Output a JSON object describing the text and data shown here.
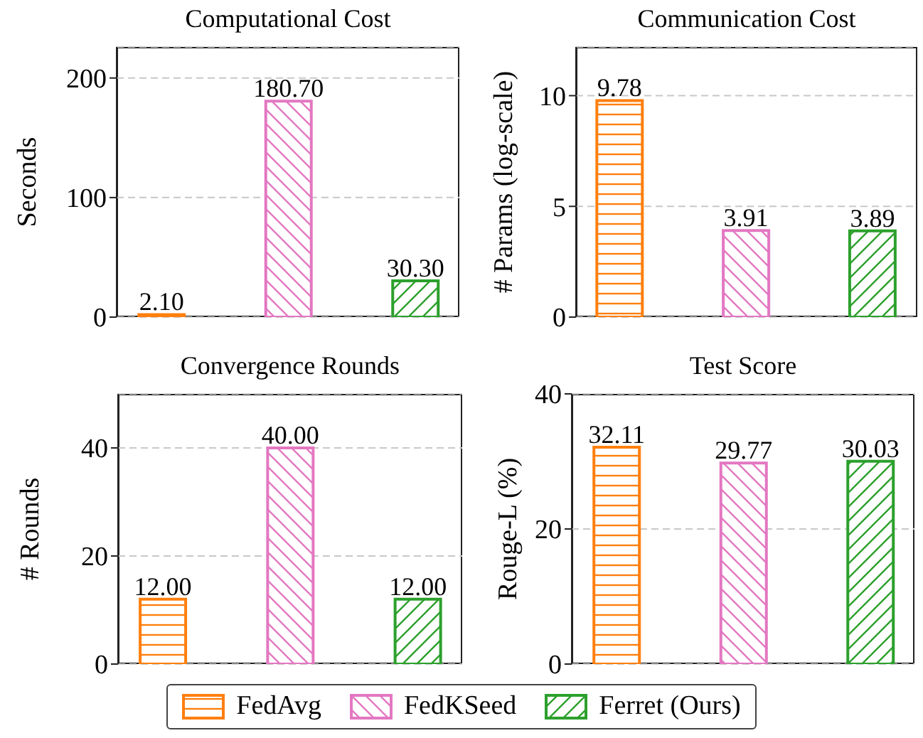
{
  "chart_data": [
    {
      "type": "bar",
      "title": "Computational Cost",
      "ylabel": "Seconds",
      "categories": [
        null,
        null,
        null
      ],
      "series": [
        {
          "name": "FedAvg",
          "color": "#ff7f0e",
          "values": [
            2.1,
            null,
            null
          ],
          "value_labels": [
            "2.10",
            null,
            null
          ]
        },
        {
          "name": "FedKSeed",
          "color": "#e377c2",
          "values": [
            null,
            180.7,
            null
          ],
          "value_labels": [
            null,
            "180.70",
            null
          ]
        },
        {
          "name": "Ferret (Ours)",
          "color": "#2ca02c",
          "values": [
            null,
            null,
            30.3
          ],
          "value_labels": [
            null,
            null,
            "30.30"
          ]
        }
      ],
      "ylim": [
        0,
        226
      ],
      "yticks": [
        0,
        100,
        200
      ],
      "grid": "y",
      "tick_labels": "y",
      "legend": "bottom"
    },
    {
      "type": "bar",
      "title": "Communication Cost",
      "ylabel": "# Params (log-scale)",
      "categories": [
        null,
        null,
        null
      ],
      "series": [
        {
          "color": "#ff7f0e",
          "values": [
            9.78,
            null,
            null
          ],
          "value_labels": [
            "9.78",
            null,
            null
          ]
        },
        {
          "color": "#e377c2",
          "values": [
            null,
            3.91,
            null
          ],
          "value_labels": [
            null,
            "3.91",
            null
          ]
        },
        {
          "color": "#2ca02c",
          "values": [
            null,
            null,
            3.89
          ],
          "value_labels": [
            null,
            null,
            "3.89"
          ]
        }
      ],
      "ylim": [
        0,
        12.2
      ],
      "yticks": [
        0,
        5,
        10
      ],
      "grid": "y",
      "tick_labels": "y"
    },
    {
      "type": "bar",
      "title": "Convergence Rounds",
      "ylabel": "# Rounds",
      "categories": [
        null,
        null,
        null
      ],
      "series": [
        {
          "color": "#ff7f0e",
          "values": [
            12,
            null,
            null
          ],
          "value_labels": [
            "12.00",
            null,
            null
          ]
        },
        {
          "color": "#e377c2",
          "values": [
            null,
            40,
            null
          ],
          "value_labels": [
            null,
            "40.00",
            null
          ]
        },
        {
          "color": "#2ca02c",
          "values": [
            null,
            null,
            12
          ],
          "value_labels": [
            null,
            null,
            "12.00"
          ]
        }
      ],
      "ylim": [
        0,
        50
      ],
      "yticks": [
        0,
        20,
        40
      ],
      "grid": "y",
      "tick_labels": "y"
    },
    {
      "type": "bar",
      "title": "Test Score",
      "ylabel": "Rouge-L (%)",
      "categories": [
        null,
        null,
        null
      ],
      "series": [
        {
          "color": "#ff7f0e",
          "values": [
            32.11,
            null,
            null
          ],
          "value_labels": [
            "32.11",
            null,
            null
          ]
        },
        {
          "color": "#e377c2",
          "values": [
            null,
            29.77,
            null
          ],
          "value_labels": [
            null,
            "29.77",
            null
          ]
        },
        {
          "color": "#2ca02c",
          "values": [
            null,
            null,
            30.03
          ],
          "value_labels": [
            null,
            null,
            "30.03"
          ]
        }
      ],
      "ylim": [
        0,
        40
      ],
      "yticks": [
        0,
        20,
        40
      ],
      "grid": "y",
      "tick_labels": "y"
    }
  ]
}
